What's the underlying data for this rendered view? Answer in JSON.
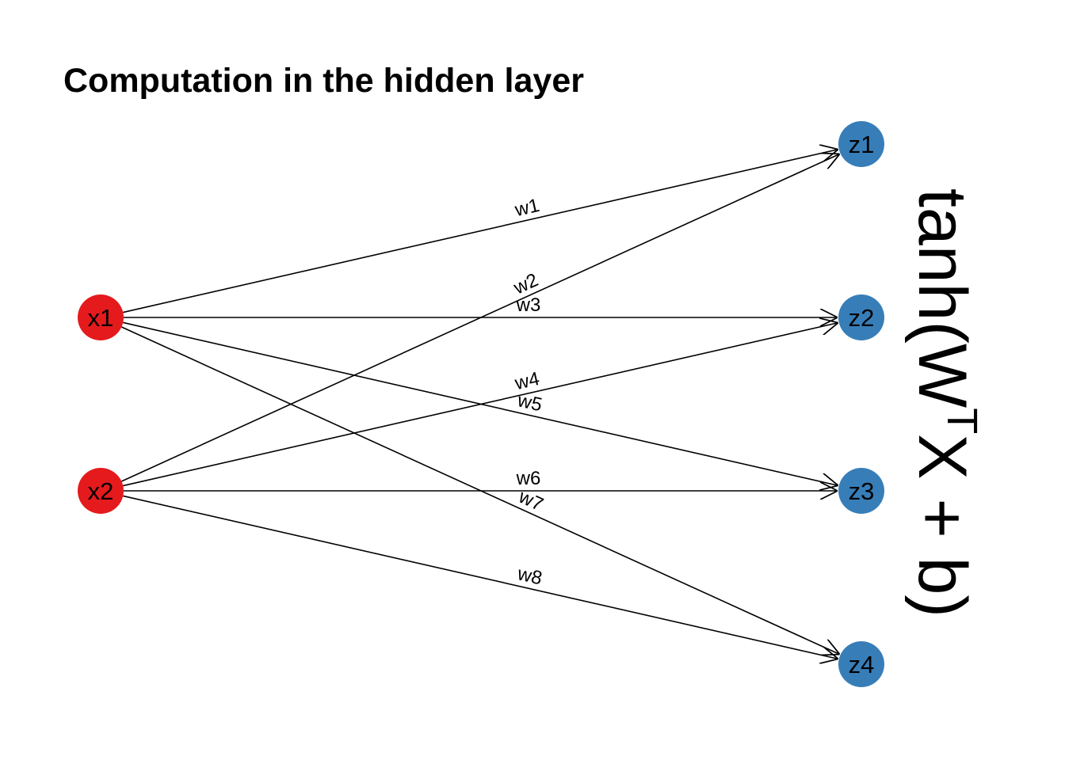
{
  "title": "Computation in the hidden layer",
  "colors": {
    "input": "#E41A1C",
    "hidden": "#377EB8",
    "edge": "#000000"
  },
  "nodes": [
    {
      "id": "x1",
      "label": "x1",
      "layer": "input"
    },
    {
      "id": "x2",
      "label": "x2",
      "layer": "input"
    },
    {
      "id": "z1",
      "label": "z1",
      "layer": "hidden"
    },
    {
      "id": "z2",
      "label": "z2",
      "layer": "hidden"
    },
    {
      "id": "z3",
      "label": "z3",
      "layer": "hidden"
    },
    {
      "id": "z4",
      "label": "z4",
      "layer": "hidden"
    }
  ],
  "edges": [
    {
      "from": "x1",
      "to": "z1",
      "label": "w1"
    },
    {
      "from": "x2",
      "to": "z1",
      "label": "w2"
    },
    {
      "from": "x1",
      "to": "z2",
      "label": "w3"
    },
    {
      "from": "x2",
      "to": "z2",
      "label": "w4"
    },
    {
      "from": "x1",
      "to": "z3",
      "label": "w5"
    },
    {
      "from": "x2",
      "to": "z3",
      "label": "w6"
    },
    {
      "from": "x1",
      "to": "z4",
      "label": "w7"
    },
    {
      "from": "x2",
      "to": "z4",
      "label": "w8"
    }
  ],
  "formula": {
    "prefix": "tanh(W",
    "superscript": "T",
    "suffix": "X + b)"
  }
}
